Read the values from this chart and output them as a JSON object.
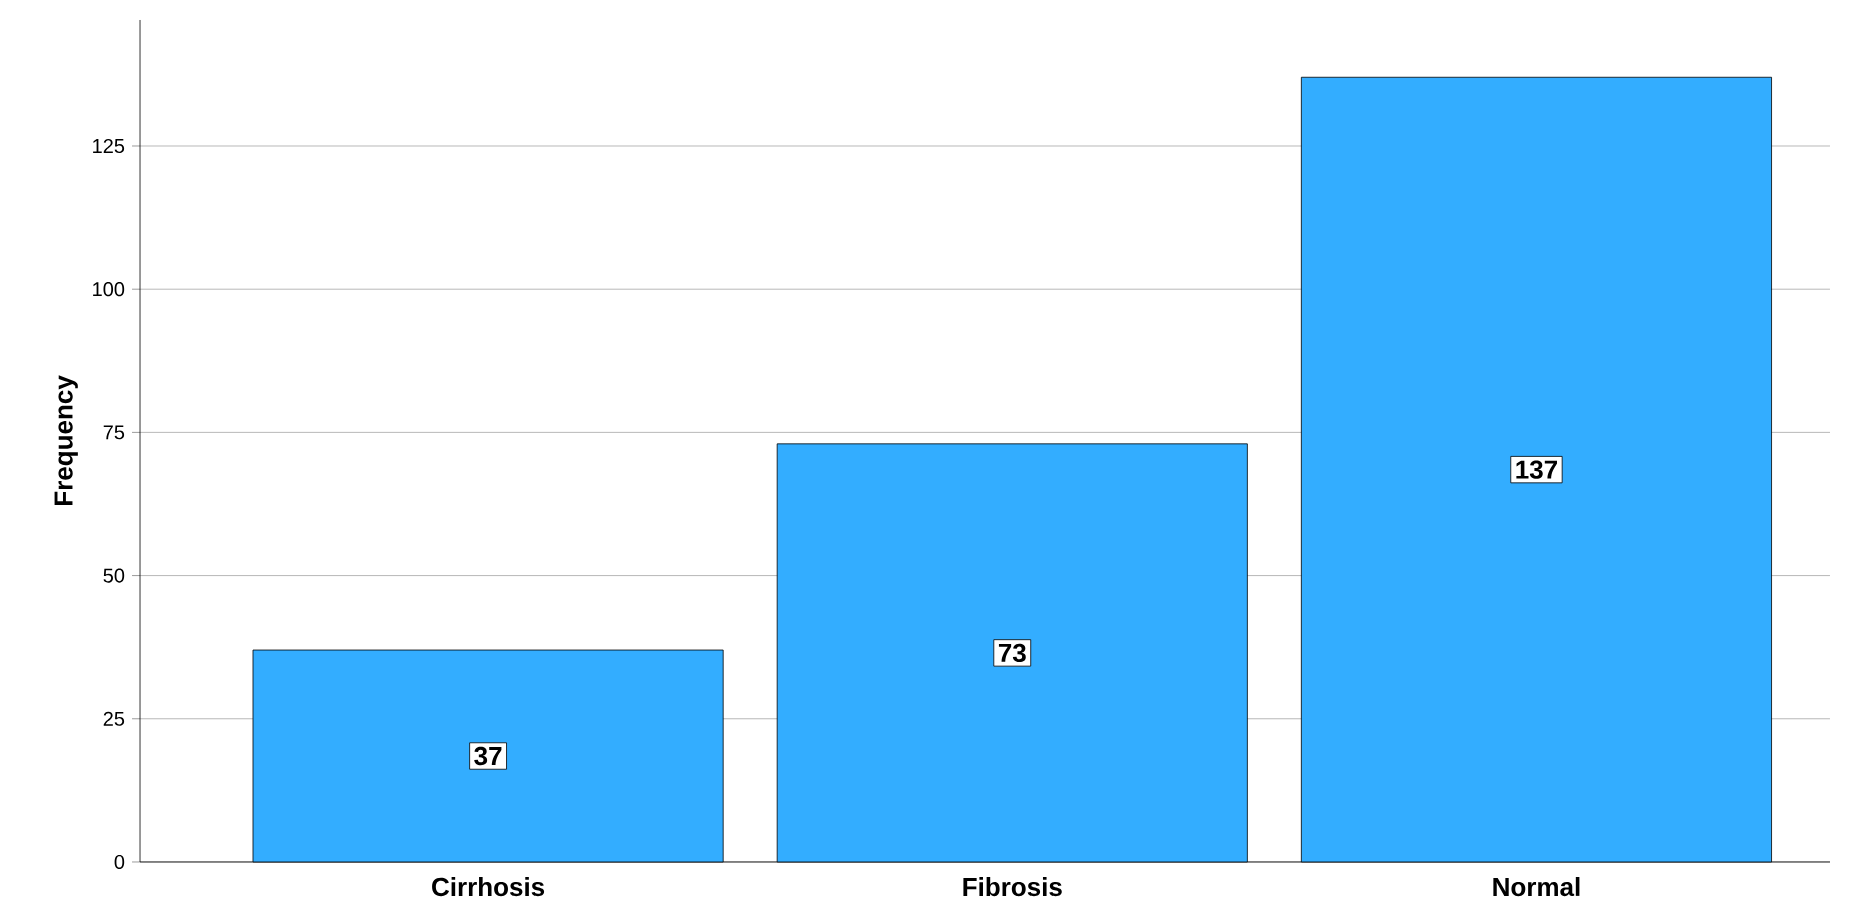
{
  "chart_data": {
    "type": "bar",
    "ylabel": "Frequency",
    "categories": [
      "Cirrhosis",
      "Fibrosis",
      "Normal"
    ],
    "values": [
      37,
      73,
      137
    ],
    "color": "#33adff",
    "ylim": [
      0,
      147
    ],
    "yticks": [
      0,
      25,
      50,
      75,
      100,
      125
    ],
    "grid": "y",
    "data_labels": true
  }
}
